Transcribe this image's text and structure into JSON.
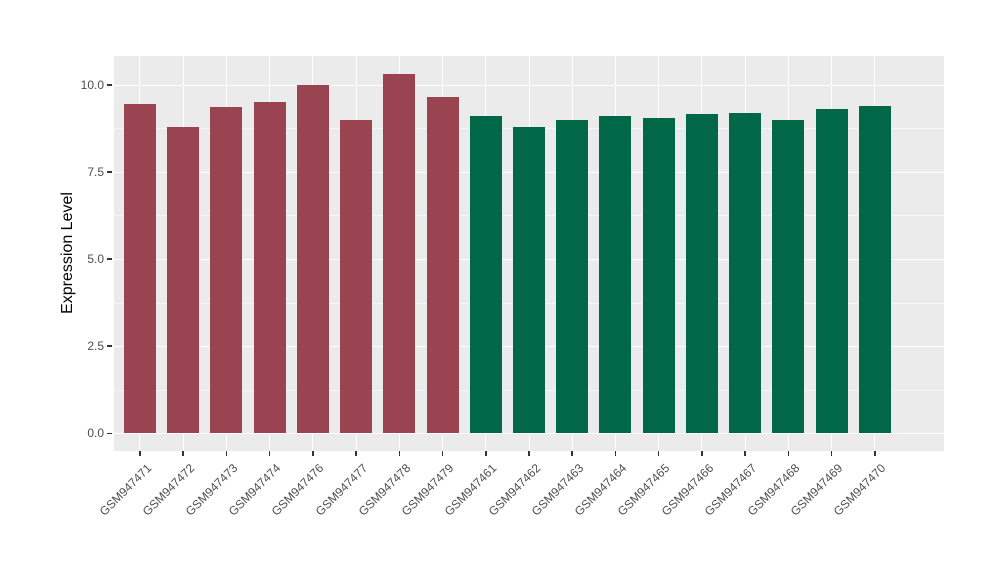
{
  "chart_data": {
    "type": "bar",
    "title": "",
    "xlabel": "",
    "ylabel": "Expression Level",
    "ylim": [
      0,
      10.8
    ],
    "grid": "white major and minor horizontal lines plus vertical lines at each bar center on gray panel",
    "legend_position": "none",
    "y_ticks": [
      {
        "value": 0.0,
        "label": "0.0"
      },
      {
        "value": 2.5,
        "label": "2.5"
      },
      {
        "value": 5.0,
        "label": "5.0"
      },
      {
        "value": 7.5,
        "label": "7.5"
      },
      {
        "value": 10.0,
        "label": "10.0"
      }
    ],
    "y_minor_ticks": [
      1.25,
      3.75,
      6.25,
      8.75
    ],
    "groups": [
      {
        "name": "dark-red-group",
        "color": "#9B4451"
      },
      {
        "name": "dark-green-group",
        "color": "#006747"
      }
    ],
    "bars": [
      {
        "label": "GSM947471",
        "value": 9.45,
        "group": 0
      },
      {
        "label": "GSM947472",
        "value": 8.8,
        "group": 0
      },
      {
        "label": "GSM947473",
        "value": 9.35,
        "group": 0
      },
      {
        "label": "GSM947474",
        "value": 9.5,
        "group": 0
      },
      {
        "label": "GSM947476",
        "value": 10.0,
        "group": 0
      },
      {
        "label": "GSM947477",
        "value": 9.0,
        "group": 0
      },
      {
        "label": "GSM947478",
        "value": 10.3,
        "group": 0
      },
      {
        "label": "GSM947479",
        "value": 9.65,
        "group": 0
      },
      {
        "label": "GSM947461",
        "value": 9.1,
        "group": 1
      },
      {
        "label": "GSM947462",
        "value": 8.8,
        "group": 1
      },
      {
        "label": "GSM947463",
        "value": 9.0,
        "group": 1
      },
      {
        "label": "GSM947464",
        "value": 9.1,
        "group": 1
      },
      {
        "label": "GSM947465",
        "value": 9.05,
        "group": 1
      },
      {
        "label": "GSM947466",
        "value": 9.15,
        "group": 1
      },
      {
        "label": "GSM947467",
        "value": 9.2,
        "group": 1
      },
      {
        "label": "GSM947468",
        "value": 9.0,
        "group": 1
      },
      {
        "label": "GSM947469",
        "value": 9.3,
        "group": 1
      },
      {
        "label": "GSM947470",
        "value": 9.4,
        "group": 1
      }
    ],
    "style": {
      "panel_bg": "#EBEBEB",
      "grid_color": "#FFFFFF",
      "axis_text_color": "#4D4D4D",
      "axis_title_color": "#000000",
      "tick_color": "#333333",
      "background": "#FFFFFF"
    }
  }
}
